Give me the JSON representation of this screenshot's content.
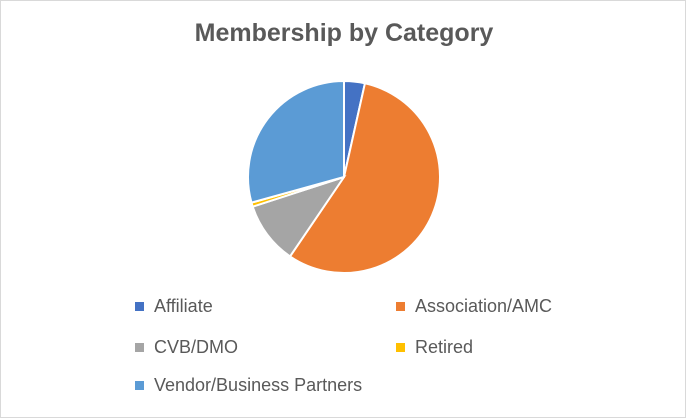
{
  "chart_data": {
    "type": "pie",
    "title": "Membership by Category",
    "categories": [
      "Affiliate",
      "Association/AMC",
      "CVB/DMO",
      "Retired",
      "Vendor/Business Partners"
    ],
    "values": [
      3.5,
      56,
      10.5,
      0.7,
      29.3
    ],
    "colors": [
      "#4472c4",
      "#ed7d31",
      "#a5a5a5",
      "#ffc000",
      "#5b9bd5"
    ],
    "legend_position": "bottom",
    "start_angle_deg": 0,
    "direction": "clockwise"
  }
}
